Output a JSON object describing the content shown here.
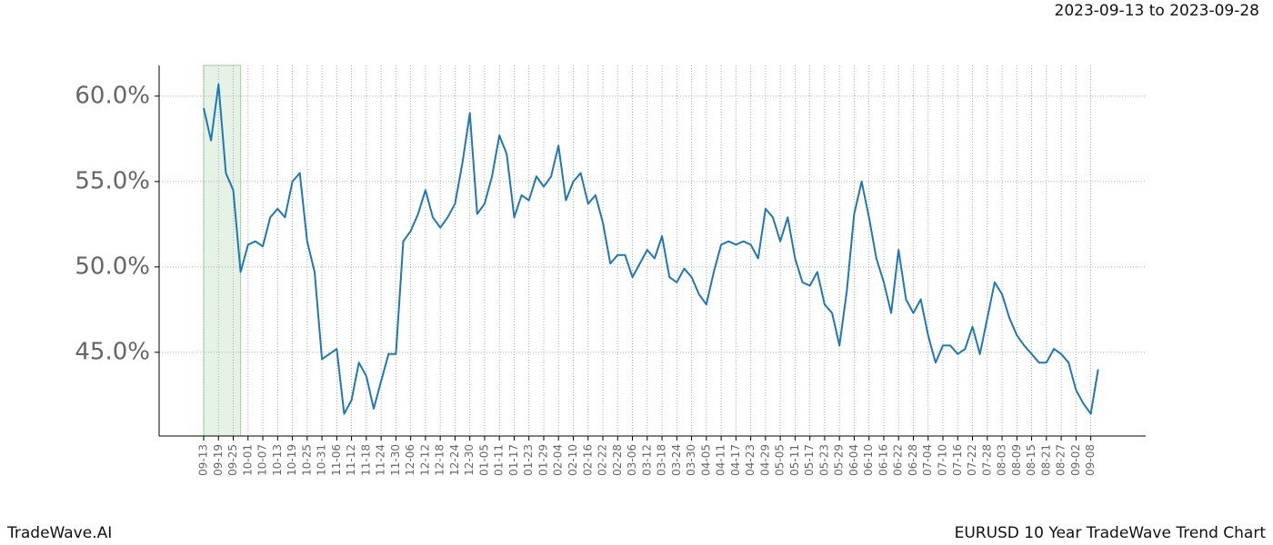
{
  "chart_data": {
    "type": "line",
    "title": "2023-09-13 to 2023-09-28",
    "brand": "TradeWave.AI",
    "caption": "EURUSD 10 Year TradeWave Trend Chart",
    "categories": [
      "09-13",
      null,
      "09-19",
      null,
      "09-25",
      null,
      "10-01",
      null,
      "10-07",
      null,
      "10-13",
      null,
      "10-19",
      null,
      "10-25",
      null,
      "10-31",
      null,
      "11-06",
      null,
      "11-12",
      null,
      "11-18",
      null,
      "11-24",
      null,
      "11-30",
      null,
      "12-06",
      null,
      "12-12",
      null,
      "12-18",
      null,
      "12-24",
      null,
      "12-30",
      null,
      "01-05",
      null,
      "01-11",
      null,
      "01-17",
      null,
      "01-23",
      null,
      "01-29",
      null,
      "02-04",
      null,
      "02-10",
      null,
      "02-16",
      null,
      "02-22",
      null,
      "02-28",
      null,
      "03-06",
      null,
      "03-12",
      null,
      "03-18",
      null,
      "03-24",
      null,
      "03-30",
      null,
      "04-05",
      null,
      "04-11",
      null,
      "04-17",
      null,
      "04-23",
      null,
      "04-29",
      null,
      "05-05",
      null,
      "05-11",
      null,
      "05-17",
      null,
      "05-23",
      null,
      "05-29",
      null,
      "06-04",
      null,
      "06-10",
      null,
      "06-16",
      null,
      "06-22",
      null,
      "06-28",
      null,
      "07-04",
      null,
      "07-10",
      null,
      "07-16",
      null,
      "07-22",
      null,
      "07-28",
      null,
      "08-03",
      null,
      "08-09",
      null,
      "08-15",
      null,
      "08-21",
      null,
      "08-27",
      null,
      "09-02",
      null,
      "09-08",
      null
    ],
    "series": [
      {
        "name": "EURUSD",
        "color": "#1f77b4",
        "values": [
          59.3,
          57.4,
          60.7,
          55.5,
          54.5,
          49.7,
          51.3,
          51.5,
          51.2,
          52.9,
          53.4,
          52.9,
          55.0,
          55.5,
          51.5,
          49.7,
          44.6,
          44.9,
          45.2,
          41.4,
          42.2,
          44.4,
          43.6,
          41.7,
          43.3,
          44.9,
          44.9,
          51.5,
          52.1,
          53.1,
          54.5,
          52.9,
          52.3,
          52.9,
          53.7,
          56.1,
          59.0,
          53.1,
          53.7,
          55.3,
          57.7,
          56.6,
          52.9,
          54.2,
          53.9,
          55.3,
          54.7,
          55.3,
          57.1,
          53.9,
          55.0,
          55.5,
          53.7,
          54.2,
          52.6,
          50.2,
          50.7,
          50.7,
          49.4,
          50.2,
          51.0,
          50.5,
          51.8,
          49.4,
          49.1,
          49.9,
          49.4,
          48.4,
          47.8,
          49.7,
          51.3,
          51.5,
          51.3,
          51.5,
          51.3,
          50.5,
          53.4,
          52.9,
          51.5,
          52.9,
          50.5,
          49.1,
          48.9,
          49.7,
          47.8,
          47.3,
          45.4,
          48.6,
          53.1,
          55.0,
          52.9,
          50.5,
          49.1,
          47.3,
          51.0,
          48.1,
          47.3,
          48.1,
          46.0,
          44.4,
          45.4,
          45.4,
          44.9,
          45.2,
          46.5,
          44.9,
          47.0,
          49.1,
          48.4,
          47.0,
          46.0,
          45.4,
          44.9,
          44.4,
          44.4,
          45.2,
          44.9,
          44.4,
          42.8,
          42.0,
          41.4,
          44.0
        ]
      }
    ],
    "shade_indices": [
      0,
      5
    ],
    "shade_color": "#e6f2e6",
    "ylim": [
      40.1,
      61.8
    ],
    "yticks": [
      {
        "value": 45,
        "label": "45.0%"
      },
      {
        "value": 50,
        "label": "50.0%"
      },
      {
        "value": 55,
        "label": "55.0%"
      },
      {
        "value": 60,
        "label": "60.0%"
      }
    ],
    "grid": true
  }
}
